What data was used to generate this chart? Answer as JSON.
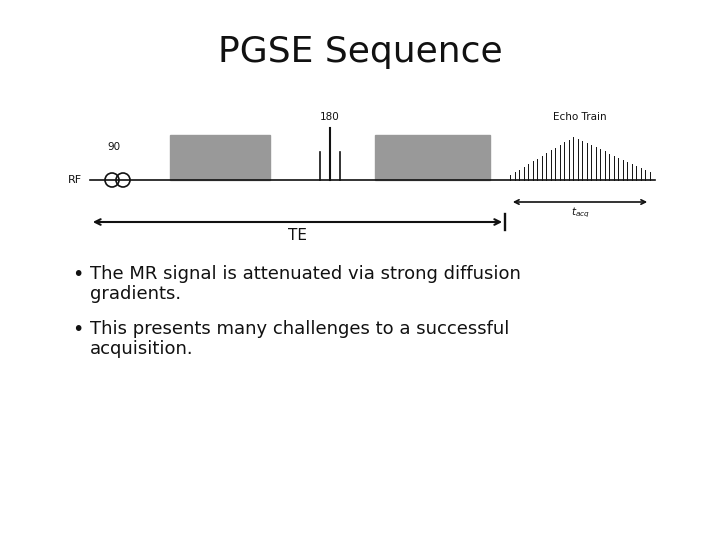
{
  "title": "PGSE Sequence",
  "title_fontsize": 26,
  "bullet_fontsize": 13,
  "bg_color": "#ffffff",
  "text_color": "#000000",
  "gray": "#999999",
  "dark": "#111111",
  "bullet1_line1": "The MR signal is attenuated via strong diffusion",
  "bullet1_line2": "gradients.",
  "bullet2_line1": "This presents many challenges to a successful",
  "bullet2_line2": "acquisition.",
  "rf_label": "RF",
  "label_90": "90",
  "label_180": "180",
  "label_echo": "Echo Train",
  "label_TE": "TE"
}
